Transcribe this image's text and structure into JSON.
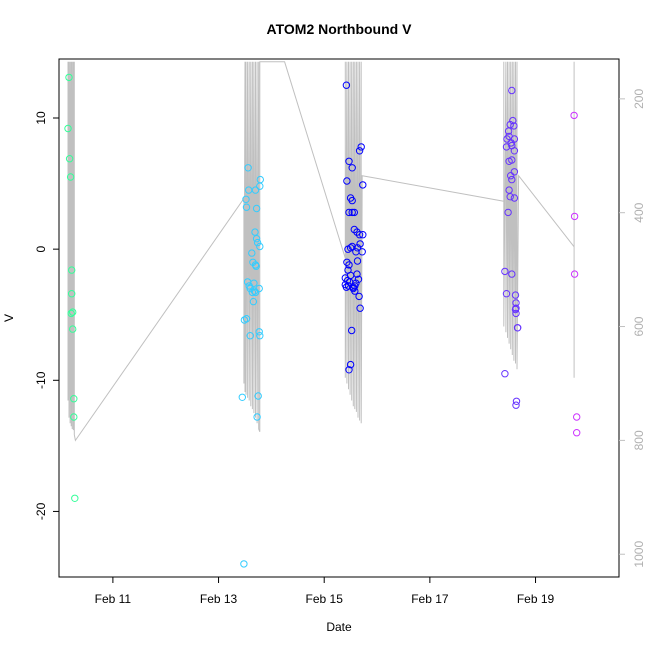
{
  "chart_data": {
    "type": "scatter",
    "title": "ATOM2 Northbound V",
    "xlabel": "Date",
    "ylabel": "V",
    "x_unit": "date (February)",
    "xlim": [
      9.98,
      20.58
    ],
    "ylim": [
      -25.0,
      14.5
    ],
    "x_ticks": [
      {
        "value": 11,
        "label": "Feb 11"
      },
      {
        "value": 13,
        "label": "Feb 13"
      },
      {
        "value": 15,
        "label": "Feb 15"
      },
      {
        "value": 17,
        "label": "Feb 17"
      },
      {
        "value": 19,
        "label": "Feb 19"
      }
    ],
    "y_ticks": [
      {
        "value": -20,
        "label": "-20"
      },
      {
        "value": -10,
        "label": "-10"
      },
      {
        "value": 0,
        "label": "0"
      },
      {
        "value": 10,
        "label": "10"
      }
    ],
    "secondary_y": {
      "reversed": true,
      "lim": [
        130,
        1040
      ],
      "color": "#c0c0c0",
      "ticks": [
        {
          "value": 200,
          "label": "200"
        },
        {
          "value": 400,
          "label": "400"
        },
        {
          "value": 600,
          "label": "600"
        },
        {
          "value": 800,
          "label": "800"
        },
        {
          "value": 1000,
          "label": "1000"
        }
      ]
    },
    "grid": false,
    "legend": "none",
    "series": [
      {
        "color": "#33ff99",
        "points": [
          [
            10.17,
            13.1
          ],
          [
            10.15,
            9.2
          ],
          [
            10.18,
            6.9
          ],
          [
            10.2,
            5.5
          ],
          [
            10.22,
            -1.6
          ],
          [
            10.22,
            -3.4
          ],
          [
            10.21,
            -4.9
          ],
          [
            10.24,
            -4.8
          ],
          [
            10.24,
            -6.1
          ],
          [
            10.26,
            -11.4
          ],
          [
            10.26,
            -12.8
          ],
          [
            10.28,
            -19.0
          ]
        ]
      },
      {
        "color": "#33ccff",
        "points": [
          [
            13.48,
            -24.0
          ],
          [
            13.45,
            -11.3
          ],
          [
            13.49,
            -5.4
          ],
          [
            13.53,
            -5.3
          ],
          [
            13.53,
            3.2
          ],
          [
            13.52,
            3.8
          ],
          [
            13.56,
            6.2
          ],
          [
            13.57,
            4.5
          ],
          [
            13.6,
            -6.6
          ],
          [
            13.55,
            -2.5
          ],
          [
            13.58,
            -2.8
          ],
          [
            13.6,
            -3.0
          ],
          [
            13.64,
            -3.3
          ],
          [
            13.68,
            -3.2
          ],
          [
            13.7,
            -3.3
          ],
          [
            13.67,
            -2.6
          ],
          [
            13.7,
            -1.2
          ],
          [
            13.71,
            -1.3
          ],
          [
            13.63,
            -0.3
          ],
          [
            13.65,
            -1.0
          ],
          [
            13.66,
            -4.0
          ],
          [
            13.69,
            1.3
          ],
          [
            13.72,
            0.8
          ],
          [
            13.74,
            0.5
          ],
          [
            13.78,
            0.2
          ],
          [
            13.7,
            4.5
          ],
          [
            13.72,
            3.1
          ],
          [
            13.78,
            4.8
          ],
          [
            13.79,
            5.3
          ],
          [
            13.75,
            -11.2
          ],
          [
            13.73,
            -12.8
          ],
          [
            13.77,
            -6.3
          ],
          [
            13.78,
            -6.6
          ],
          [
            13.77,
            -3.0
          ]
        ]
      },
      {
        "color": "#0000ff",
        "points": [
          [
            15.42,
            12.5
          ],
          [
            15.43,
            5.2
          ],
          [
            15.47,
            6.7
          ],
          [
            15.53,
            6.2
          ],
          [
            15.5,
            3.9
          ],
          [
            15.53,
            3.7
          ],
          [
            15.47,
            2.8
          ],
          [
            15.53,
            2.8
          ],
          [
            15.57,
            2.8
          ],
          [
            15.57,
            1.5
          ],
          [
            15.62,
            1.3
          ],
          [
            15.67,
            1.1
          ],
          [
            15.73,
            1.1
          ],
          [
            15.67,
            7.5
          ],
          [
            15.7,
            7.8
          ],
          [
            15.73,
            4.9
          ],
          [
            15.45,
            0.0
          ],
          [
            15.5,
            0.1
          ],
          [
            15.53,
            0.2
          ],
          [
            15.6,
            -0.2
          ],
          [
            15.63,
            0.1
          ],
          [
            15.68,
            0.4
          ],
          [
            15.72,
            -0.2
          ],
          [
            15.43,
            -1.0
          ],
          [
            15.45,
            -1.6
          ],
          [
            15.47,
            -1.2
          ],
          [
            15.4,
            -2.2
          ],
          [
            15.44,
            -2.4
          ],
          [
            15.48,
            -2.5
          ],
          [
            15.4,
            -2.7
          ],
          [
            15.42,
            -2.9
          ],
          [
            15.46,
            -2.8
          ],
          [
            15.5,
            -2.0
          ],
          [
            15.55,
            -2.9
          ],
          [
            15.58,
            -3.2
          ],
          [
            15.6,
            -2.6
          ],
          [
            15.62,
            -1.9
          ],
          [
            15.65,
            -2.3
          ],
          [
            15.68,
            -4.5
          ],
          [
            15.66,
            -3.6
          ],
          [
            15.63,
            -0.9
          ],
          [
            15.52,
            -6.2
          ],
          [
            15.5,
            -8.8
          ],
          [
            15.47,
            -9.2
          ],
          [
            15.55,
            -3.0
          ],
          [
            15.58,
            -2.8
          ]
        ]
      },
      {
        "color": "#6633ff",
        "points": [
          [
            18.55,
            12.1
          ],
          [
            18.46,
            8.4
          ],
          [
            18.49,
            9.0
          ],
          [
            18.52,
            9.5
          ],
          [
            18.57,
            9.8
          ],
          [
            18.59,
            9.4
          ],
          [
            18.5,
            8.6
          ],
          [
            18.54,
            8.1
          ],
          [
            18.6,
            8.4
          ],
          [
            18.55,
            7.9
          ],
          [
            18.6,
            7.5
          ],
          [
            18.45,
            7.8
          ],
          [
            18.5,
            6.7
          ],
          [
            18.55,
            6.8
          ],
          [
            18.53,
            5.6
          ],
          [
            18.55,
            5.3
          ],
          [
            18.6,
            5.9
          ],
          [
            18.5,
            4.5
          ],
          [
            18.52,
            4.0
          ],
          [
            18.6,
            3.9
          ],
          [
            18.48,
            2.8
          ],
          [
            18.42,
            -1.7
          ],
          [
            18.55,
            -1.9
          ],
          [
            18.45,
            -3.4
          ],
          [
            18.62,
            -3.5
          ],
          [
            18.63,
            -4.1
          ],
          [
            18.62,
            -4.6
          ],
          [
            18.63,
            -4.9
          ],
          [
            18.66,
            -6.0
          ],
          [
            18.42,
            -9.5
          ],
          [
            18.64,
            -11.6
          ],
          [
            18.63,
            -11.9
          ],
          [
            18.66,
            -6.0
          ],
          [
            18.63,
            -4.5
          ]
        ]
      },
      {
        "color": "#cc33ff",
        "points": [
          [
            19.73,
            10.2
          ],
          [
            19.74,
            2.5
          ],
          [
            19.74,
            -1.9
          ],
          [
            19.78,
            -12.8
          ],
          [
            19.78,
            -14.0
          ]
        ]
      }
    ],
    "secondary_lines": [
      {
        "color": "#c0c0c0",
        "points": [
          [
            10.15,
            135
          ],
          [
            10.15,
            730
          ],
          [
            10.17,
            135
          ],
          [
            10.17,
            760
          ],
          [
            10.19,
            135
          ],
          [
            10.19,
            770
          ],
          [
            10.21,
            135
          ],
          [
            10.21,
            775
          ],
          [
            10.23,
            135
          ],
          [
            10.23,
            780
          ],
          [
            10.25,
            135
          ],
          [
            10.25,
            782
          ],
          [
            10.27,
            135
          ],
          [
            10.27,
            790
          ],
          [
            10.29,
            800
          ],
          [
            13.48,
            375
          ],
          [
            13.48,
            700
          ],
          [
            13.5,
            135
          ],
          [
            13.5,
            715
          ],
          [
            13.52,
            135
          ],
          [
            13.52,
            720
          ],
          [
            13.55,
            135
          ],
          [
            13.55,
            725
          ],
          [
            13.58,
            135
          ],
          [
            13.58,
            730
          ],
          [
            13.61,
            135
          ],
          [
            13.61,
            740
          ],
          [
            13.64,
            135
          ],
          [
            13.64,
            745
          ],
          [
            13.67,
            135
          ],
          [
            13.67,
            752
          ],
          [
            13.7,
            135
          ],
          [
            13.7,
            760
          ],
          [
            13.73,
            135
          ],
          [
            13.73,
            770
          ],
          [
            13.76,
            135
          ],
          [
            13.76,
            780
          ],
          [
            13.78,
            785
          ],
          [
            13.78,
            135
          ],
          [
            14.25,
            135
          ],
          [
            15.4,
            480
          ],
          [
            15.4,
            135
          ],
          [
            15.4,
            690
          ],
          [
            15.43,
            135
          ],
          [
            15.43,
            700
          ],
          [
            15.46,
            135
          ],
          [
            15.46,
            710
          ],
          [
            15.49,
            135
          ],
          [
            15.49,
            720
          ],
          [
            15.52,
            135
          ],
          [
            15.52,
            730
          ],
          [
            15.55,
            135
          ],
          [
            15.55,
            740
          ],
          [
            15.58,
            135
          ],
          [
            15.58,
            745
          ],
          [
            15.61,
            135
          ],
          [
            15.61,
            750
          ],
          [
            15.64,
            135
          ],
          [
            15.64,
            760
          ],
          [
            15.67,
            135
          ],
          [
            15.67,
            765
          ],
          [
            15.7,
            135
          ],
          [
            15.7,
            770
          ],
          [
            15.72,
            335
          ],
          [
            18.4,
            380
          ],
          [
            18.4,
            135
          ],
          [
            18.4,
            600
          ],
          [
            18.44,
            135
          ],
          [
            18.44,
            610
          ],
          [
            18.47,
            135
          ],
          [
            18.47,
            620
          ],
          [
            18.5,
            135
          ],
          [
            18.5,
            630
          ],
          [
            18.53,
            135
          ],
          [
            18.53,
            640
          ],
          [
            18.56,
            135
          ],
          [
            18.56,
            650
          ],
          [
            18.59,
            135
          ],
          [
            18.59,
            660
          ],
          [
            18.62,
            135
          ],
          [
            18.62,
            665
          ],
          [
            18.65,
            135
          ],
          [
            18.65,
            675
          ],
          [
            18.68,
            335
          ],
          [
            19.73,
            460
          ],
          [
            19.73,
            135
          ],
          [
            19.73,
            690
          ]
        ]
      }
    ]
  }
}
